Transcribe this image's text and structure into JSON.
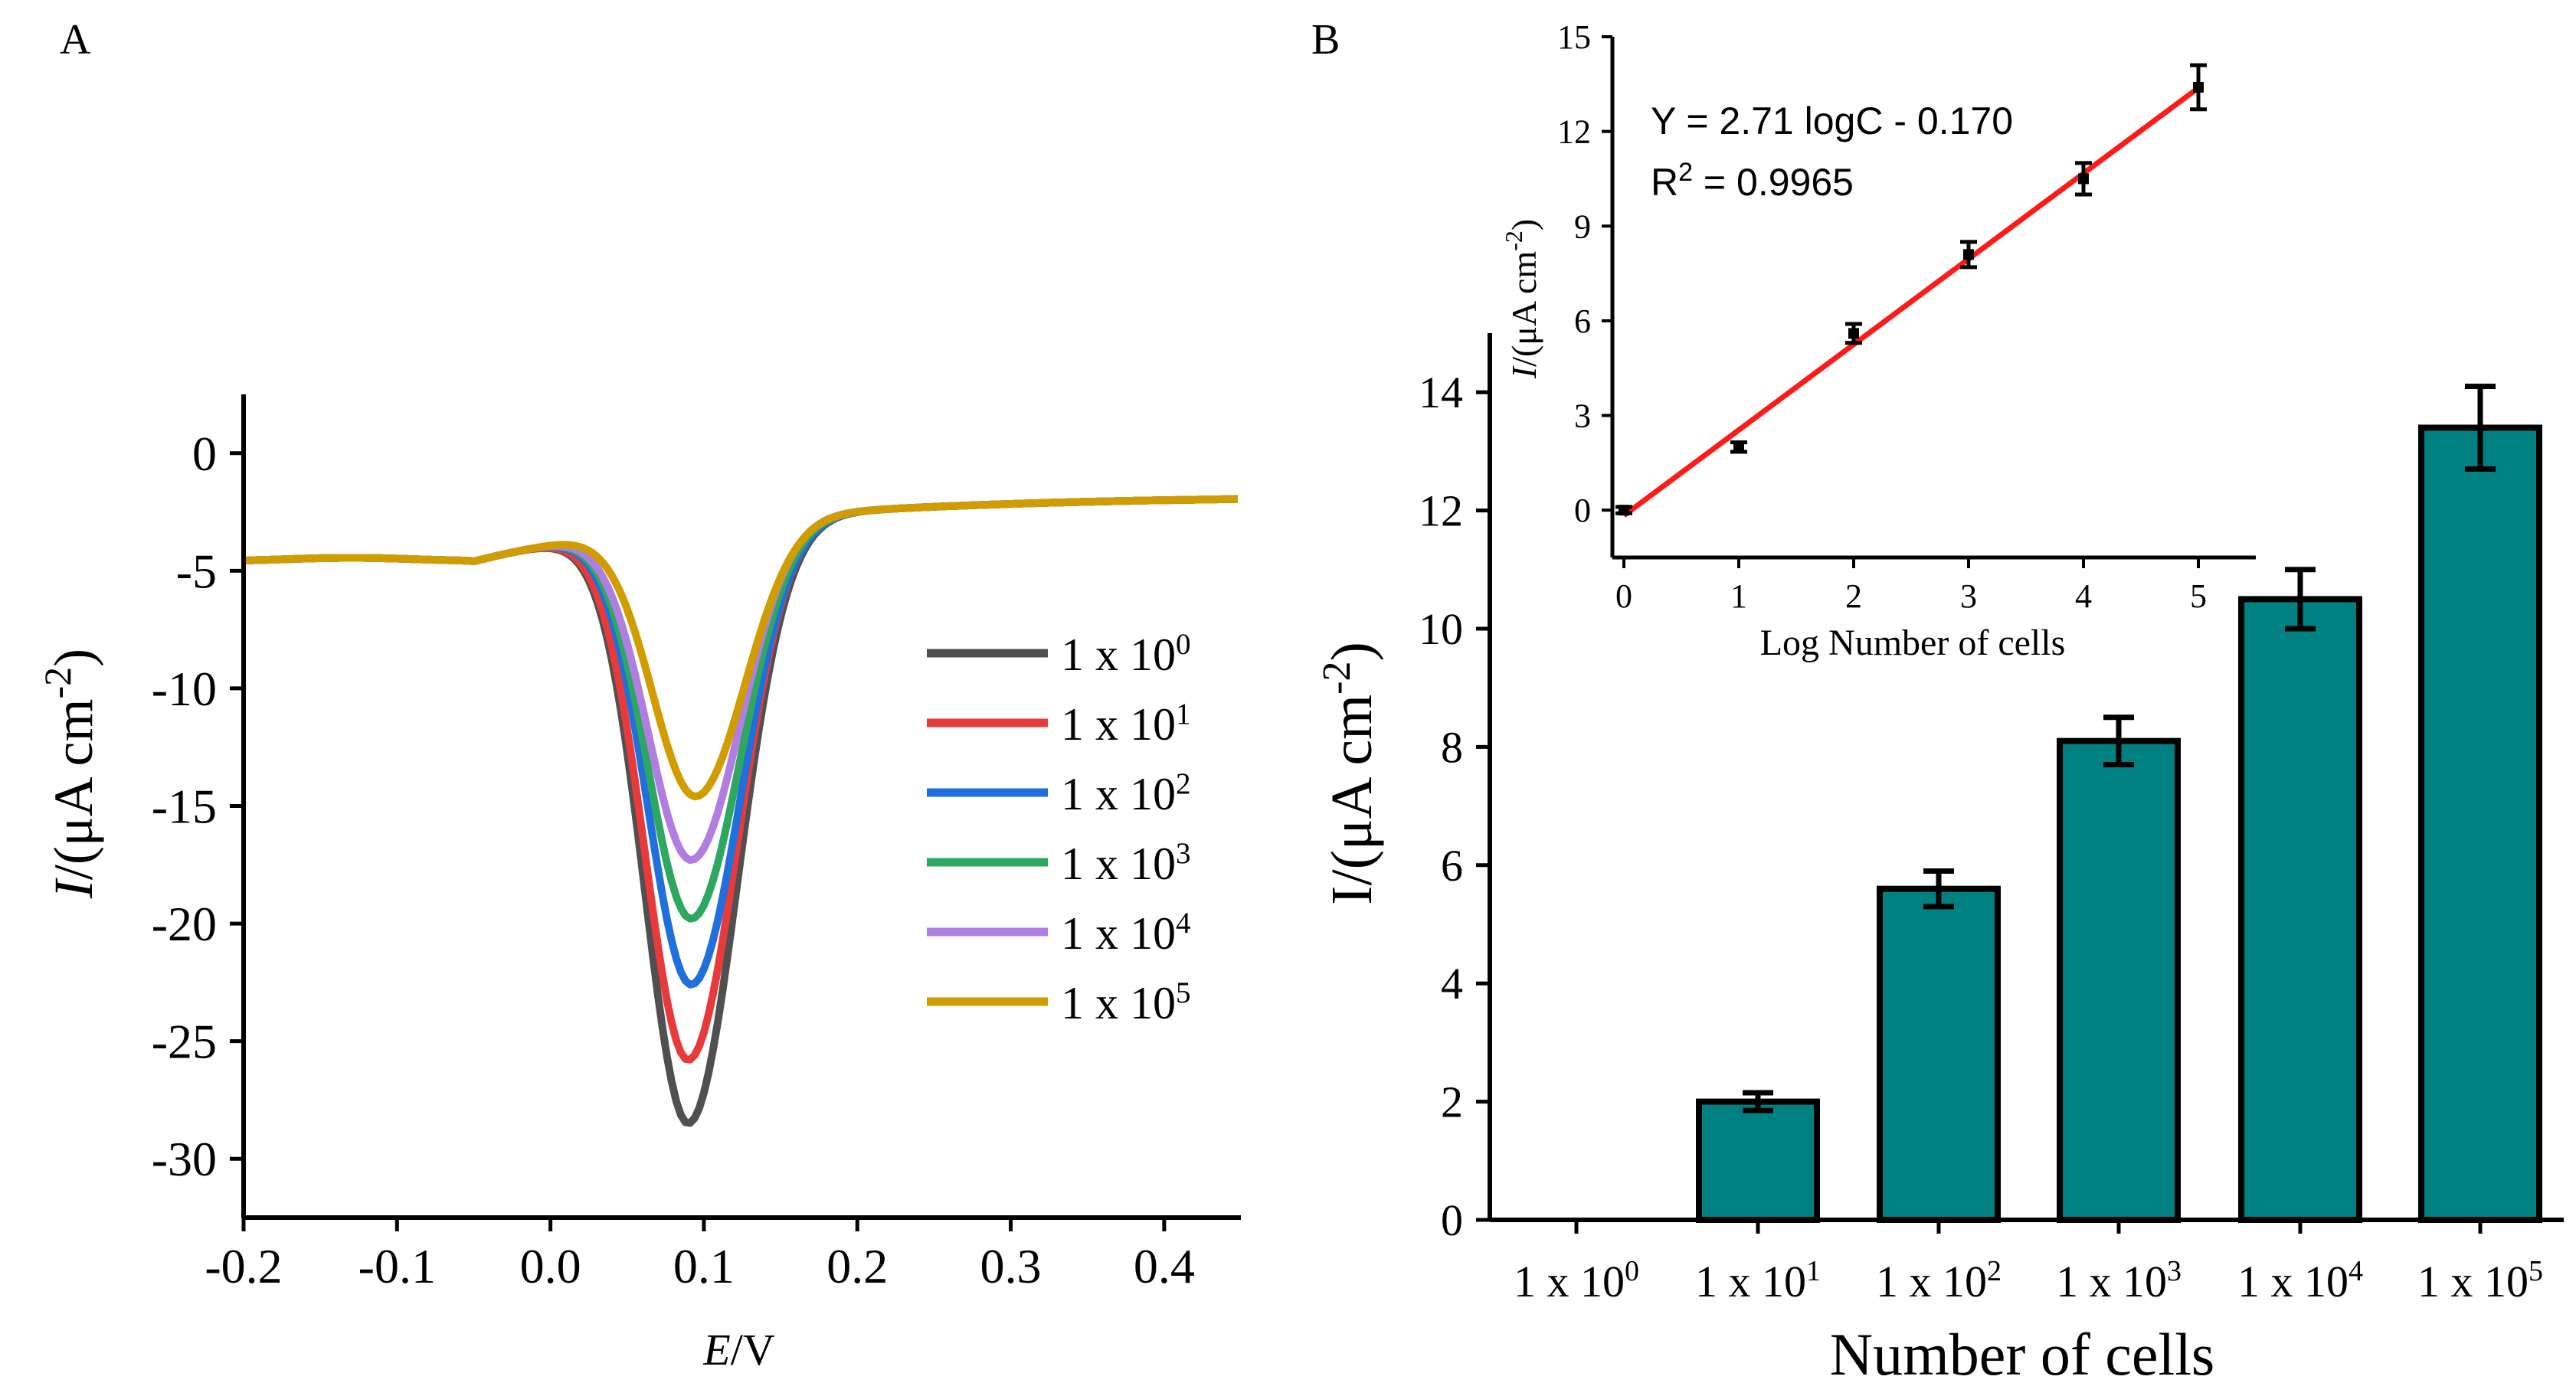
{
  "panel_a_label": "A",
  "panel_b_label": "B",
  "chart_data": [
    {
      "id": "panel_a",
      "type": "line",
      "xlabel_italic": "E",
      "xlabel_unit": "/V",
      "ylabel_italic": "I",
      "ylabel_unit": "/(μA cm",
      "ylabel_exp": "-2",
      "ylabel_close": ")",
      "xlim": [
        -0.2,
        0.45
      ],
      "ylim": [
        -32.5,
        2.5
      ],
      "x_ticks": [
        -0.2,
        -0.1,
        0.0,
        0.1,
        0.2,
        0.3,
        0.4
      ],
      "x_tick_labels": [
        "-0.2",
        "-0.1",
        "0.0",
        "0.1",
        "0.2",
        "0.3",
        "0.4"
      ],
      "y_ticks": [
        0,
        -5,
        -10,
        -15,
        -20,
        -25,
        -30
      ],
      "y_tick_labels": [
        "0",
        "-5",
        "-10",
        "-15",
        "-20",
        "-25",
        "-30"
      ],
      "legend_position": "right",
      "series": [
        {
          "name_base": "1 x 10",
          "name_exp": "0",
          "color": "#505050",
          "peak_x": 0.09,
          "peak_y": -28.5
        },
        {
          "name_base": "1 x 10",
          "name_exp": "1",
          "color": "#e83a3a",
          "peak_x": 0.09,
          "peak_y": -25.8
        },
        {
          "name_base": "1 x 10",
          "name_exp": "2",
          "color": "#1f6fdc",
          "peak_x": 0.092,
          "peak_y": -22.6
        },
        {
          "name_base": "1 x 10",
          "name_exp": "3",
          "color": "#2ea860",
          "peak_x": 0.092,
          "peak_y": -19.8
        },
        {
          "name_base": "1 x 10",
          "name_exp": "4",
          "color": "#b07ee0",
          "peak_x": 0.092,
          "peak_y": -17.3
        },
        {
          "name_base": "1 x 10",
          "name_exp": "5",
          "color": "#d09c00",
          "peak_x": 0.095,
          "peak_y": -14.6
        }
      ]
    },
    {
      "id": "panel_b_bar",
      "type": "bar",
      "categories_base": [
        "1 x 10",
        "1 x 10",
        "1 x 10",
        "1 x 10",
        "1 x 10",
        "1 x 10"
      ],
      "categories_exp": [
        "0",
        "1",
        "2",
        "3",
        "4",
        "5"
      ],
      "values": [
        0.0,
        2.0,
        5.6,
        8.1,
        10.5,
        13.4
      ],
      "errors": [
        0.0,
        0.15,
        0.3,
        0.4,
        0.5,
        0.7
      ],
      "bar_color": "#008080",
      "xlabel": "Number of cells",
      "ylabel_text": "I/(μA cm",
      "ylabel_exp": "-2",
      "ylabel_close": ")",
      "ylim": [
        0,
        15
      ],
      "y_ticks": [
        0,
        2,
        4,
        6,
        8,
        10,
        12,
        14
      ],
      "y_tick_labels": [
        "0",
        "2",
        "4",
        "6",
        "8",
        "10",
        "12",
        "14"
      ]
    },
    {
      "id": "panel_b_inset",
      "type": "scatter",
      "x": [
        0,
        1,
        2,
        3,
        4,
        5
      ],
      "y": [
        0.0,
        2.0,
        5.6,
        8.1,
        10.5,
        13.4
      ],
      "errors": [
        0.1,
        0.15,
        0.3,
        0.4,
        0.5,
        0.7
      ],
      "fit": {
        "slope": 2.71,
        "intercept": -0.17,
        "color": "#ff1a1a"
      },
      "equation": "Y = 2.71 logC - 0.170",
      "r2_base": "R",
      "r2_exp": "2",
      "r2_value": " = 0.9965",
      "xlabel": "Log Number of cells",
      "ylabel_italic": "I",
      "ylabel_unit": "/(μA cm",
      "ylabel_exp": "-2",
      "ylabel_close": ")",
      "xlim": [
        -0.1,
        5.5
      ],
      "ylim": [
        -1.5,
        15
      ],
      "x_ticks": [
        0,
        1,
        2,
        3,
        4,
        5
      ],
      "x_tick_labels": [
        "0",
        "1",
        "2",
        "3",
        "4",
        "5"
      ],
      "y_ticks": [
        0,
        3,
        6,
        9,
        12,
        15
      ],
      "y_tick_labels": [
        "0",
        "3",
        "6",
        "9",
        "12",
        "15"
      ]
    }
  ]
}
